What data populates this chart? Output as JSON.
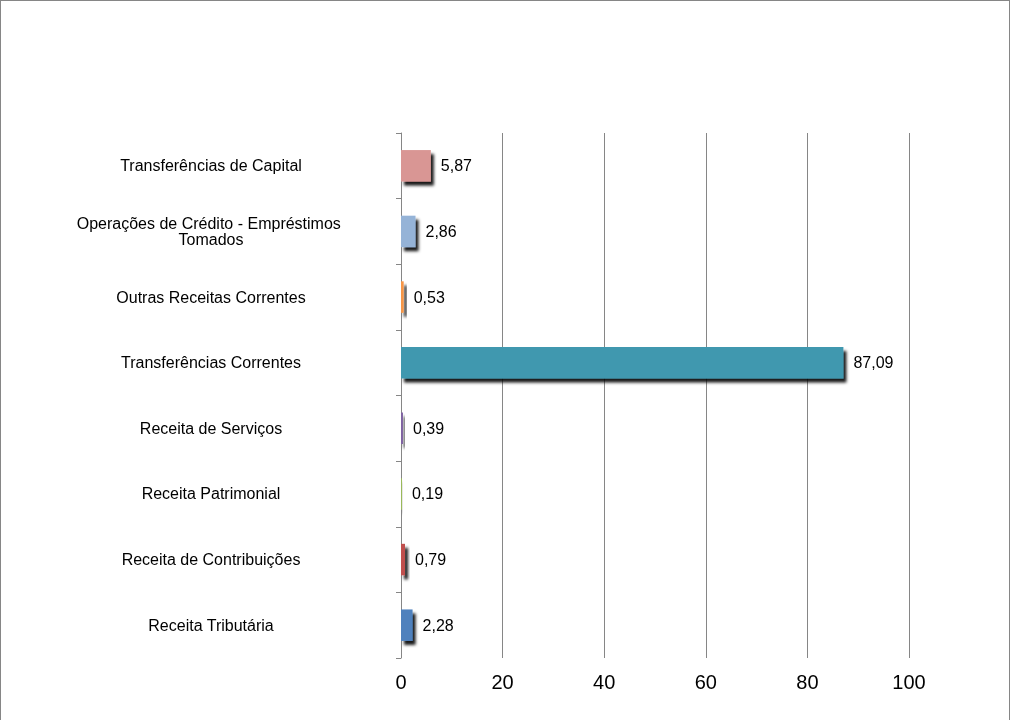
{
  "chart_data": {
    "type": "bar",
    "orientation": "horizontal",
    "categories": [
      "Transferências de Capital",
      "Operações de Crédito - Empréstimos Tomados",
      "Outras Receitas Correntes",
      "Transferências Correntes",
      "Receita de Serviços",
      "Receita Patrimonial",
      "Receita de Contribuições",
      "Receita Tributária"
    ],
    "values": [
      5.87,
      2.86,
      0.53,
      87.09,
      0.39,
      0.19,
      0.79,
      2.28
    ],
    "value_labels": [
      "5,87",
      "2,86",
      "0,53",
      "87,09",
      "0,39",
      "0,19",
      "0,79",
      "2,28"
    ],
    "colors": [
      "#d99694",
      "#95b3d7",
      "#f79646",
      "#4198af",
      "#8064a2",
      "#9bbb59",
      "#c0504d",
      "#4f81bd"
    ],
    "xlim": [
      0,
      100
    ],
    "xticks": [
      0,
      20,
      40,
      60,
      80,
      100
    ],
    "grid": "x"
  }
}
